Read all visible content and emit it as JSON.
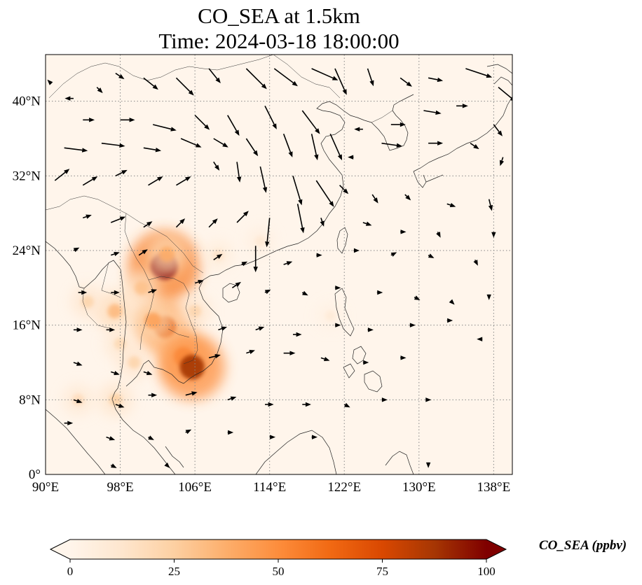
{
  "title": {
    "line1": "CO_SEA at 1.5km",
    "line2": "Time: 2024-03-18 18:00:00"
  },
  "map": {
    "lon_range": [
      90,
      140
    ],
    "lat_range": [
      0,
      45
    ],
    "lon_ticks": [
      {
        "value": 90,
        "label": "90°E"
      },
      {
        "value": 98,
        "label": "98°E"
      },
      {
        "value": 106,
        "label": "106°E"
      },
      {
        "value": 114,
        "label": "114°E"
      },
      {
        "value": 122,
        "label": "122°E"
      },
      {
        "value": 130,
        "label": "130°E"
      },
      {
        "value": 138,
        "label": "138°E"
      }
    ],
    "lat_ticks": [
      {
        "value": 0,
        "label": "0°"
      },
      {
        "value": 8,
        "label": "8°N"
      },
      {
        "value": 16,
        "label": "16°N"
      },
      {
        "value": 24,
        "label": "24°N"
      },
      {
        "value": 32,
        "label": "32°N"
      },
      {
        "value": 40,
        "label": "40°N"
      }
    ],
    "gridlines": true,
    "background_color": "#fff5eb",
    "co_hotspots": [
      {
        "lon": 102.7,
        "lat": 22.3,
        "value": 100
      },
      {
        "lon": 103.0,
        "lat": 23.6,
        "value": 38
      },
      {
        "lon": 102.8,
        "lat": 15.8,
        "value": 72
      },
      {
        "lon": 101.5,
        "lat": 16.5,
        "value": 42
      },
      {
        "lon": 104.8,
        "lat": 12.6,
        "value": 60
      },
      {
        "lon": 105.7,
        "lat": 11.5,
        "value": 88
      },
      {
        "lon": 97.4,
        "lat": 17.5,
        "value": 33
      },
      {
        "lon": 94.5,
        "lat": 18.5,
        "value": 22
      },
      {
        "lon": 98.0,
        "lat": 14.0,
        "value": 20
      },
      {
        "lon": 93.5,
        "lat": 8.0,
        "value": 18
      },
      {
        "lon": 100.3,
        "lat": 20.0,
        "value": 30
      },
      {
        "lon": 106.0,
        "lat": 17.5,
        "value": 22
      },
      {
        "lon": 108.5,
        "lat": 23.5,
        "value": 14
      },
      {
        "lon": 113.0,
        "lat": 25.0,
        "value": 10
      },
      {
        "lon": 99.5,
        "lat": 12.0,
        "value": 22
      },
      {
        "lon": 97.5,
        "lat": 8.0,
        "value": 24
      },
      {
        "lon": 120.5,
        "lat": 17.0,
        "value": 8
      }
    ]
  },
  "wind_vectors": [
    {
      "lon": 90.5,
      "lat": 42,
      "u": -1,
      "v": 1
    },
    {
      "lon": 93,
      "lat": 40.3,
      "u": -3,
      "v": 0
    },
    {
      "lon": 95.5,
      "lat": 41.5,
      "u": 2,
      "v": -2
    },
    {
      "lon": 97.5,
      "lat": 43,
      "u": 3,
      "v": -2
    },
    {
      "lon": 100.5,
      "lat": 42.5,
      "u": 5,
      "v": -4
    },
    {
      "lon": 104,
      "lat": 42.5,
      "u": 6,
      "v": -6
    },
    {
      "lon": 107.5,
      "lat": 43.5,
      "u": 4,
      "v": -5
    },
    {
      "lon": 111.5,
      "lat": 43.5,
      "u": 7,
      "v": -7
    },
    {
      "lon": 114.5,
      "lat": 43.5,
      "u": 8,
      "v": -6
    },
    {
      "lon": 118.5,
      "lat": 43.5,
      "u": 9,
      "v": -4
    },
    {
      "lon": 121,
      "lat": 43.5,
      "u": 4,
      "v": -9
    },
    {
      "lon": 124.5,
      "lat": 43.5,
      "u": 2,
      "v": -6
    },
    {
      "lon": 128,
      "lat": 42.5,
      "u": 4,
      "v": -3
    },
    {
      "lon": 131,
      "lat": 42.5,
      "u": 5,
      "v": -1
    },
    {
      "lon": 135,
      "lat": 43.5,
      "u": 9,
      "v": -3
    },
    {
      "lon": 138.5,
      "lat": 41.5,
      "u": 6,
      "v": -5
    },
    {
      "lon": 94,
      "lat": 38,
      "u": 4,
      "v": 0
    },
    {
      "lon": 98,
      "lat": 38,
      "u": 5,
      "v": 0
    },
    {
      "lon": 101.5,
      "lat": 37.5,
      "u": 8,
      "v": -2
    },
    {
      "lon": 106,
      "lat": 38.5,
      "u": 5,
      "v": -5
    },
    {
      "lon": 109.5,
      "lat": 38.5,
      "u": 4,
      "v": -7
    },
    {
      "lon": 113.5,
      "lat": 39.5,
      "u": 4,
      "v": -8
    },
    {
      "lon": 117.5,
      "lat": 39,
      "u": 6,
      "v": -8
    },
    {
      "lon": 120.5,
      "lat": 36.5,
      "u": 4,
      "v": -9
    },
    {
      "lon": 124,
      "lat": 37,
      "u": -3,
      "v": 0
    },
    {
      "lon": 127,
      "lat": 37.5,
      "u": 5,
      "v": 0
    },
    {
      "lon": 130.5,
      "lat": 39,
      "u": 6,
      "v": -1
    },
    {
      "lon": 134,
      "lat": 39.5,
      "u": 4,
      "v": 0
    },
    {
      "lon": 138,
      "lat": 37.5,
      "u": 3,
      "v": -4
    },
    {
      "lon": 92,
      "lat": 35,
      "u": 8,
      "v": -1
    },
    {
      "lon": 96,
      "lat": 35.5,
      "u": 8,
      "v": -1
    },
    {
      "lon": 100.5,
      "lat": 35,
      "u": 6,
      "v": -1
    },
    {
      "lon": 104.5,
      "lat": 36,
      "u": 7,
      "v": -3
    },
    {
      "lon": 108,
      "lat": 36,
      "u": 5,
      "v": -3
    },
    {
      "lon": 111.5,
      "lat": 36,
      "u": 4,
      "v": -6
    },
    {
      "lon": 115.5,
      "lat": 36.5,
      "u": 3,
      "v": -8
    },
    {
      "lon": 118.5,
      "lat": 36.5,
      "u": 2,
      "v": -9
    },
    {
      "lon": 123,
      "lat": 34,
      "u": -2,
      "v": 0
    },
    {
      "lon": 126,
      "lat": 35.5,
      "u": 7,
      "v": -1
    },
    {
      "lon": 131,
      "lat": 35.5,
      "u": 5,
      "v": 0
    },
    {
      "lon": 135.5,
      "lat": 35.5,
      "u": 3,
      "v": -2
    },
    {
      "lon": 139,
      "lat": 34,
      "u": -1,
      "v": -3
    },
    {
      "lon": 91,
      "lat": 31.5,
      "u": 5,
      "v": 4
    },
    {
      "lon": 94,
      "lat": 31,
      "u": 5,
      "v": 3
    },
    {
      "lon": 97.5,
      "lat": 32,
      "u": 4,
      "v": 2
    },
    {
      "lon": 101,
      "lat": 31,
      "u": 5,
      "v": 3
    },
    {
      "lon": 104,
      "lat": 31,
      "u": 5,
      "v": 3
    },
    {
      "lon": 108,
      "lat": 33.5,
      "u": 2,
      "v": -3
    },
    {
      "lon": 110.5,
      "lat": 33.5,
      "u": 1,
      "v": -7
    },
    {
      "lon": 113,
      "lat": 33,
      "u": 2,
      "v": -9
    },
    {
      "lon": 116.5,
      "lat": 32,
      "u": 3,
      "v": -10
    },
    {
      "lon": 119,
      "lat": 31.5,
      "u": 6,
      "v": -9
    },
    {
      "lon": 121.5,
      "lat": 31,
      "u": 3,
      "v": -3
    },
    {
      "lon": 125,
      "lat": 30,
      "u": 2,
      "v": -3
    },
    {
      "lon": 128.5,
      "lat": 30,
      "u": 2,
      "v": -2
    },
    {
      "lon": 133,
      "lat": 29,
      "u": 3,
      "v": -1
    },
    {
      "lon": 137.5,
      "lat": 29.5,
      "u": 1,
      "v": -4
    },
    {
      "lon": 94,
      "lat": 27.5,
      "u": 3,
      "v": 1
    },
    {
      "lon": 97,
      "lat": 27,
      "u": 5,
      "v": 2
    },
    {
      "lon": 100.5,
      "lat": 26.5,
      "u": 3,
      "v": 2
    },
    {
      "lon": 104,
      "lat": 26.5,
      "u": 3,
      "v": 3
    },
    {
      "lon": 107.5,
      "lat": 26.5,
      "u": 3,
      "v": 3
    },
    {
      "lon": 110.5,
      "lat": 27,
      "u": 4,
      "v": 4
    },
    {
      "lon": 112.5,
      "lat": 24.5,
      "u": 0,
      "v": -9
    },
    {
      "lon": 114,
      "lat": 27.5,
      "u": -1,
      "v": -10
    },
    {
      "lon": 117,
      "lat": 29,
      "u": 2,
      "v": -10
    },
    {
      "lon": 119.5,
      "lat": 27.5,
      "u": 1,
      "v": -3
    },
    {
      "lon": 124,
      "lat": 27,
      "u": 3,
      "v": -1
    },
    {
      "lon": 128,
      "lat": 26,
      "u": 2,
      "v": 0
    },
    {
      "lon": 132,
      "lat": 26,
      "u": 1,
      "v": -2
    },
    {
      "lon": 138,
      "lat": 26,
      "u": 0,
      "v": -2
    },
    {
      "lon": 93,
      "lat": 24,
      "u": 2,
      "v": 1
    },
    {
      "lon": 97,
      "lat": 23.5,
      "u": 3,
      "v": 1
    },
    {
      "lon": 100,
      "lat": 23.5,
      "u": 3,
      "v": 2
    },
    {
      "lon": 108,
      "lat": 23,
      "u": 3,
      "v": 2
    },
    {
      "lon": 111,
      "lat": 22.5,
      "u": 2,
      "v": 1
    },
    {
      "lon": 115.5,
      "lat": 22.5,
      "u": 3,
      "v": 1
    },
    {
      "lon": 119,
      "lat": 23.5,
      "u": 2,
      "v": 0
    },
    {
      "lon": 123,
      "lat": 24,
      "u": 2,
      "v": 0
    },
    {
      "lon": 127,
      "lat": 23.5,
      "u": 2,
      "v": 1
    },
    {
      "lon": 131,
      "lat": 23.5,
      "u": 2,
      "v": -1
    },
    {
      "lon": 136,
      "lat": 23,
      "u": 1,
      "v": -2
    },
    {
      "lon": 93.5,
      "lat": 19.5,
      "u": 3,
      "v": 0
    },
    {
      "lon": 97,
      "lat": 19.5,
      "u": 3,
      "v": 0
    },
    {
      "lon": 101,
      "lat": 19.5,
      "u": 3,
      "v": 1
    },
    {
      "lon": 106,
      "lat": 20.5,
      "u": 3,
      "v": 1
    },
    {
      "lon": 110,
      "lat": 20,
      "u": 3,
      "v": 2
    },
    {
      "lon": 113.5,
      "lat": 19.5,
      "u": 2,
      "v": 1
    },
    {
      "lon": 117.5,
      "lat": 19.5,
      "u": 2,
      "v": -1
    },
    {
      "lon": 121,
      "lat": 20,
      "u": 2,
      "v": 0
    },
    {
      "lon": 125.5,
      "lat": 19.5,
      "u": 2,
      "v": 0
    },
    {
      "lon": 129.5,
      "lat": 19,
      "u": 2,
      "v": -1
    },
    {
      "lon": 133.5,
      "lat": 18.5,
      "u": 1,
      "v": -1
    },
    {
      "lon": 137.5,
      "lat": 19,
      "u": 0,
      "v": -1
    },
    {
      "lon": 93,
      "lat": 15.5,
      "u": 3,
      "v": 0
    },
    {
      "lon": 96.5,
      "lat": 15.5,
      "u": 3,
      "v": 0
    },
    {
      "lon": 108.5,
      "lat": 15.5,
      "u": 3,
      "v": 1
    },
    {
      "lon": 112.5,
      "lat": 15.5,
      "u": 3,
      "v": 1
    },
    {
      "lon": 116.5,
      "lat": 15,
      "u": 3,
      "v": 0
    },
    {
      "lon": 121,
      "lat": 16,
      "u": 2,
      "v": 0
    },
    {
      "lon": 124.5,
      "lat": 15.5,
      "u": 2,
      "v": 0
    },
    {
      "lon": 129,
      "lat": 16,
      "u": 2,
      "v": 0
    },
    {
      "lon": 133,
      "lat": 16.5,
      "u": 2,
      "v": 0
    },
    {
      "lon": 136.5,
      "lat": 14.5,
      "u": -1,
      "v": 0
    },
    {
      "lon": 93,
      "lat": 12,
      "u": 3,
      "v": -1
    },
    {
      "lon": 97,
      "lat": 11,
      "u": 3,
      "v": -1
    },
    {
      "lon": 100.5,
      "lat": 11,
      "u": 3,
      "v": -1
    },
    {
      "lon": 107.5,
      "lat": 12.5,
      "u": 4,
      "v": 1
    },
    {
      "lon": 111.5,
      "lat": 13,
      "u": 3,
      "v": 1
    },
    {
      "lon": 115.5,
      "lat": 13,
      "u": 4,
      "v": 0
    },
    {
      "lon": 119.5,
      "lat": 12.5,
      "u": 3,
      "v": -1
    },
    {
      "lon": 124,
      "lat": 12,
      "u": 2,
      "v": 0
    },
    {
      "lon": 128,
      "lat": 12.5,
      "u": 2,
      "v": 0
    },
    {
      "lon": 93,
      "lat": 8,
      "u": 3,
      "v": -1
    },
    {
      "lon": 97.5,
      "lat": 7.5,
      "u": 3,
      "v": -1
    },
    {
      "lon": 101,
      "lat": 8.5,
      "u": 3,
      "v": 0
    },
    {
      "lon": 105,
      "lat": 8.5,
      "u": 4,
      "v": 1
    },
    {
      "lon": 109.5,
      "lat": 8,
      "u": 3,
      "v": 1
    },
    {
      "lon": 113.5,
      "lat": 7.5,
      "u": 3,
      "v": 0
    },
    {
      "lon": 117.5,
      "lat": 7.5,
      "u": 3,
      "v": 0
    },
    {
      "lon": 122,
      "lat": 7.5,
      "u": 2,
      "v": -1
    },
    {
      "lon": 126,
      "lat": 8,
      "u": 2,
      "v": 0
    },
    {
      "lon": 131,
      "lat": 8,
      "u": 1,
      "v": 0
    },
    {
      "lon": 92,
      "lat": 5.5,
      "u": 3,
      "v": 0
    },
    {
      "lon": 96.5,
      "lat": 4,
      "u": 3,
      "v": -1
    },
    {
      "lon": 101,
      "lat": 4,
      "u": 2,
      "v": -1
    },
    {
      "lon": 105,
      "lat": 4.5,
      "u": 2,
      "v": 1
    },
    {
      "lon": 109.5,
      "lat": 4.5,
      "u": 2,
      "v": 0
    },
    {
      "lon": 114,
      "lat": 4,
      "u": 2,
      "v": 0
    },
    {
      "lon": 118.5,
      "lat": 4,
      "u": 2,
      "v": 0
    },
    {
      "lon": 97,
      "lat": 1,
      "u": 2,
      "v": -1
    },
    {
      "lon": 103,
      "lat": 1,
      "u": 1,
      "v": -1
    },
    {
      "lon": 131,
      "lat": 1,
      "u": 0,
      "v": -1
    }
  ],
  "colorbar": {
    "label": "CO_SEA (ppbv)",
    "min": 0,
    "max": 100,
    "extend": "both",
    "ticks": [
      {
        "value": 0,
        "label": "0"
      },
      {
        "value": 25,
        "label": "25"
      },
      {
        "value": 50,
        "label": "50"
      },
      {
        "value": 75,
        "label": "75"
      },
      {
        "value": 100,
        "label": "100"
      }
    ],
    "colors": [
      "#fff5eb",
      "#fee6ce",
      "#fdd0a2",
      "#fdae6b",
      "#fd8d3c",
      "#f16913",
      "#d94801",
      "#a63603",
      "#7f0000"
    ]
  }
}
